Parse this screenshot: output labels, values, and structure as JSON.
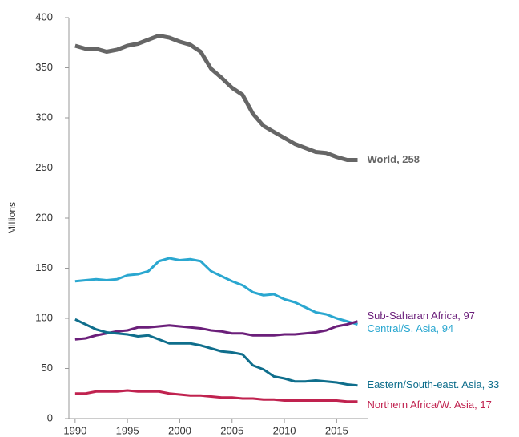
{
  "chart_data": {
    "type": "line",
    "y_label": "Millions",
    "x": [
      1990,
      1991,
      1992,
      1993,
      1994,
      1995,
      1996,
      1997,
      1998,
      1999,
      2000,
      2001,
      2002,
      2003,
      2004,
      2005,
      2006,
      2007,
      2008,
      2009,
      2010,
      2011,
      2012,
      2013,
      2014,
      2015,
      2016,
      2017
    ],
    "xlim": [
      1989.4,
      2018.8
    ],
    "xticks": [
      1990,
      1995,
      2000,
      2005,
      2010,
      2015
    ],
    "ylim": [
      0,
      400
    ],
    "yticks": [
      0,
      50,
      100,
      150,
      200,
      250,
      300,
      350,
      400
    ],
    "series": [
      {
        "name": "World, 258",
        "color": "#666666",
        "values": [
          372,
          369,
          369,
          366,
          368,
          372,
          374,
          378,
          382,
          380,
          376,
          373,
          366,
          349,
          340,
          330,
          323,
          304,
          292,
          286,
          280,
          274,
          270,
          266,
          265,
          261,
          258,
          258
        ]
      },
      {
        "name": "Central/S. Asia, 94",
        "color": "#2aa7d0",
        "values": [
          137,
          138,
          139,
          138,
          139,
          143,
          144,
          147,
          157,
          160,
          158,
          159,
          157,
          147,
          142,
          137,
          133,
          126,
          123,
          124,
          119,
          116,
          111,
          106,
          104,
          100,
          97,
          94
        ]
      },
      {
        "name": "Sub-Saharan Africa, 97",
        "color": "#6b1f7a",
        "values": [
          79,
          80,
          83,
          85,
          87,
          88,
          91,
          91,
          92,
          93,
          92,
          91,
          90,
          88,
          87,
          85,
          85,
          83,
          83,
          83,
          84,
          84,
          85,
          86,
          88,
          92,
          94,
          97
        ]
      },
      {
        "name": "Eastern/South-east. Asia, 33",
        "color": "#0f6e8c",
        "values": [
          99,
          94,
          89,
          86,
          85,
          84,
          82,
          83,
          79,
          75,
          75,
          75,
          73,
          70,
          67,
          66,
          64,
          53,
          49,
          42,
          40,
          37,
          37,
          38,
          37,
          36,
          34,
          33
        ]
      },
      {
        "name": "Northern Africa/W. Asia, 17",
        "color": "#c0224f",
        "values": [
          25,
          25,
          27,
          27,
          27,
          28,
          27,
          27,
          27,
          25,
          24,
          23,
          23,
          22,
          21,
          21,
          20,
          20,
          19,
          19,
          18,
          18,
          18,
          18,
          18,
          18,
          17,
          17
        ]
      }
    ]
  }
}
